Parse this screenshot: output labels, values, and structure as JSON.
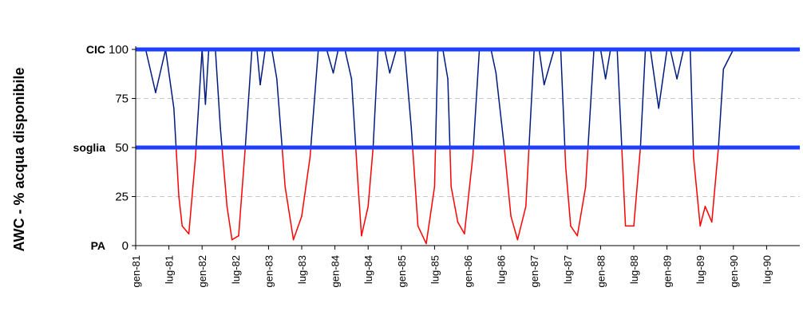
{
  "chart_data": {
    "type": "line",
    "ylabel": "AWC - % acqua disponibile",
    "ylim": [
      0,
      100
    ],
    "yticks": [
      "0",
      "25",
      "50",
      "75",
      "100"
    ],
    "grid": "horizontal dashed",
    "markers": [
      {
        "label": "CIC",
        "value": 100,
        "color": "#1f3fff"
      },
      {
        "label": "soglia",
        "value": 50,
        "color": "#1f3fff"
      },
      {
        "label": "PA",
        "value": 0,
        "color": null
      }
    ],
    "x_categories": [
      "gen-81",
      "lug-81",
      "gen-82",
      "lug-82",
      "gen-83",
      "lug-83",
      "gen-84",
      "lug-84",
      "gen-85",
      "lug-85",
      "gen-86",
      "lug-86",
      "gen-87",
      "lug-87",
      "gen-88",
      "lug-88",
      "gen-89",
      "lug-89",
      "gen-90",
      "lug-90"
    ],
    "series": [
      {
        "color_above": "#001a80",
        "color_below": "#ff0000",
        "x": [
          0,
          0.3,
          0.6,
          0.9,
          1.15,
          1.3,
          1.4,
          1.6,
          1.8,
          2.0,
          2.1,
          2.2,
          2.4,
          2.55,
          2.75,
          2.9,
          3.1,
          3.3,
          3.5,
          3.65,
          3.75,
          3.9,
          4.1,
          4.25,
          4.5,
          4.75,
          5.0,
          5.25,
          5.5,
          5.75,
          5.95,
          6.1,
          6.3,
          6.5,
          6.7,
          6.8,
          7.0,
          7.15,
          7.3,
          7.5,
          7.65,
          7.85,
          8.1,
          8.3,
          8.5,
          8.75,
          9.0,
          9.1,
          9.25,
          9.4,
          9.5,
          9.7,
          9.9,
          10.15,
          10.35,
          10.55,
          10.7,
          10.85,
          11.1,
          11.3,
          11.5,
          11.75,
          12.0,
          12.15,
          12.3,
          12.6,
          12.8,
          12.95,
          13.1,
          13.3,
          13.55,
          13.8,
          14.0,
          14.15,
          14.3,
          14.5,
          14.75,
          15.0,
          15.2,
          15.35,
          15.5,
          15.75,
          16.0,
          16.1,
          16.3,
          16.5,
          16.7,
          16.8,
          17.0,
          17.15,
          17.35,
          17.55,
          17.7,
          18.0,
          18.2,
          18.4,
          18.6,
          18.8,
          18.95,
          19.1,
          19.3,
          19.45,
          19.6,
          19.75,
          19.85,
          19.95
        ],
        "values": [
          100,
          100,
          78,
          100,
          70,
          25,
          10,
          6,
          45,
          100,
          72,
          100,
          100,
          60,
          20,
          3,
          5,
          50,
          100,
          100,
          82,
          100,
          100,
          85,
          30,
          3,
          15,
          45,
          100,
          100,
          88,
          100,
          100,
          85,
          30,
          5,
          20,
          50,
          100,
          100,
          88,
          100,
          100,
          60,
          10,
          1,
          30,
          100,
          100,
          85,
          30,
          12,
          6,
          45,
          100,
          100,
          100,
          88,
          50,
          15,
          3,
          20,
          100,
          100,
          82,
          100,
          100,
          40,
          10,
          5,
          30,
          100,
          100,
          85,
          100,
          100,
          10,
          10,
          50,
          100,
          100,
          70,
          100,
          100,
          85,
          100,
          100,
          45,
          10,
          20,
          12,
          50,
          90,
          100,
          100,
          100,
          100,
          100,
          100,
          100,
          100,
          100,
          100,
          100,
          100,
          100
        ]
      }
    ]
  }
}
